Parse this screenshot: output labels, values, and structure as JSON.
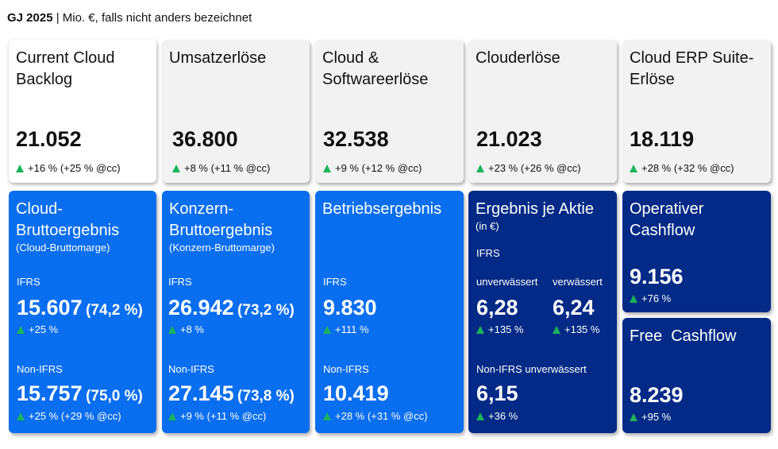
{
  "header": {
    "fy": "GJ 2025",
    "sep": " | ",
    "unit": "Mio. €, falls nicht anders bezeichnet"
  },
  "top": [
    {
      "title": "Current Cloud Backlog",
      "value": "21.052",
      "change": "+16 % (+25 % @cc)"
    },
    {
      "title": "Umsatzerlöse",
      "value": "36.800",
      "change": "+8 % (+11 % @cc)"
    },
    {
      "title": "Cloud & Softwareerlöse",
      "value": "32.538",
      "change": "+9 % (+12 % @cc)"
    },
    {
      "title": "Clouderlöse",
      "value": "21.023",
      "change": "+23 % (+26 % @cc)"
    },
    {
      "title": "Cloud ERP Suite-Erlöse",
      "value": "18.119",
      "change": "+28 % (+32 % @cc)"
    }
  ],
  "bottom": [
    {
      "title": "Cloud-Bruttoergebnis",
      "subtitle": "(Cloud-Bruttomarge)",
      "ifrs_label": "IFRS",
      "ifrs_value": "15.607",
      "ifrs_margin": "(74,2 %)",
      "ifrs_change": "+25 %",
      "nonifrs_label": "Non-IFRS",
      "nonifrs_value": "15.757",
      "nonifrs_margin": "(75,0 %)",
      "nonifrs_change": "+25 % (+29 % @cc)"
    },
    {
      "title": "Konzern-Bruttoergebnis",
      "subtitle": "(Konzern-Bruttomarge)",
      "ifrs_label": "IFRS",
      "ifrs_value": "26.942",
      "ifrs_margin": "(73,2 %)",
      "ifrs_change": "+8 %",
      "nonifrs_label": "Non-IFRS",
      "nonifrs_value": "27.145",
      "nonifrs_margin": "(73,8 %)",
      "nonifrs_change": "+9 % (+11 % @cc)"
    },
    {
      "title": "Betriebsergebnis",
      "ifrs_label": "IFRS",
      "ifrs_value": "9.830",
      "ifrs_change": "+111 %",
      "nonifrs_label": "Non-IFRS",
      "nonifrs_value": "10.419",
      "nonifrs_change": "+28 % (+31 % @cc)"
    }
  ],
  "eps": {
    "title": "Ergebnis je Aktie",
    "subtitle": "(in €)",
    "ifrs_label": "IFRS",
    "basic_label": "unverwässert",
    "basic_value": "6,28",
    "basic_change": "+135 %",
    "diluted_label": "verwässert",
    "diluted_value": "6,24",
    "diluted_change": "+135 %",
    "nonifrs_label": "Non-IFRS unverwässert",
    "nonifrs_value": "6,15",
    "nonifrs_change": "+36 %"
  },
  "ocf": {
    "title": "Operativer Cashflow",
    "value": "9.156",
    "change": "+76 %"
  },
  "fcf": {
    "title": "Free  Cashflow",
    "value": "8.239",
    "change": "+95 %"
  },
  "colors": {
    "blue": "#0a6ef0",
    "navy": "#042a87",
    "up": "#1bb35b"
  }
}
